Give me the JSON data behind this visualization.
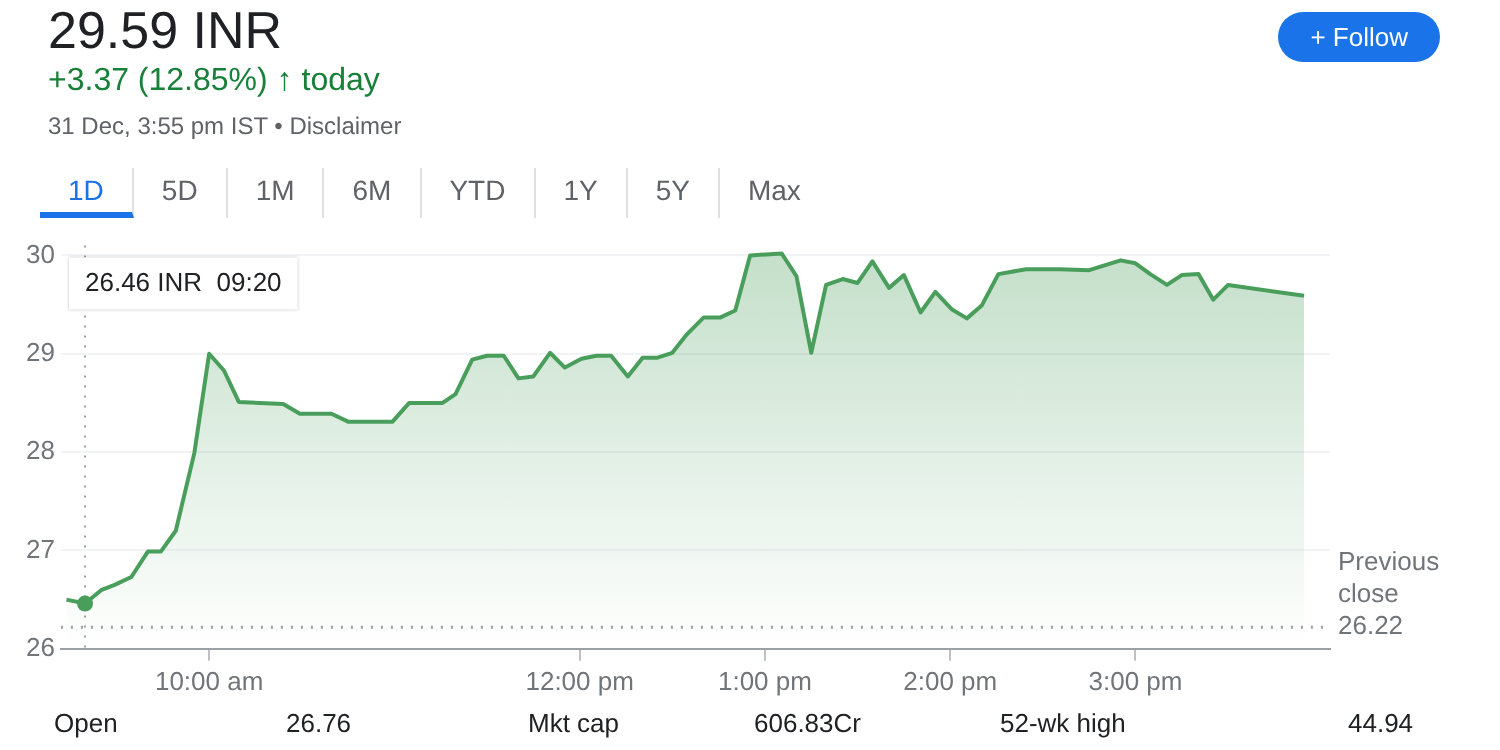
{
  "chart_data": {
    "type": "area",
    "title": "29.59 INR",
    "subtitle": "+3.37 (12.85%) ↑ today",
    "annotations": [
      "31 Dec, 3:55 pm IST • Disclaimer",
      "+ Follow",
      "1D",
      "5D",
      "1M",
      "6M",
      "YTD",
      "1Y",
      "5Y",
      "Max",
      "Open",
      "26.76",
      "Mkt cap",
      "606.83Cr",
      "52-wk high",
      "44.94"
    ],
    "series": [
      {
        "color": "#4a9e5c",
        "x": [
          9.23,
          9.33,
          9.42,
          9.49,
          9.58,
          9.67,
          9.74,
          9.82,
          9.92,
          10.0,
          10.08,
          10.16,
          10.4,
          10.49,
          10.66,
          10.75,
          10.99,
          11.08,
          11.26,
          11.33,
          11.42,
          11.5,
          11.59,
          11.67,
          11.75,
          11.84,
          11.92,
          12.01,
          12.09,
          12.17,
          12.26,
          12.34,
          12.42,
          12.5,
          12.58,
          12.67,
          12.76,
          12.84,
          12.92,
          13.09,
          13.17,
          13.25,
          13.33,
          13.42,
          13.5,
          13.58,
          13.67,
          13.75,
          13.84,
          13.92,
          14.01,
          14.09,
          14.17,
          14.26,
          14.41,
          14.59,
          14.75,
          14.92,
          15.0,
          15.08,
          15.17,
          15.25,
          15.34,
          15.42,
          15.5,
          15.91
        ],
        "values": [
          26.5,
          26.46,
          26.6,
          26.65,
          26.73,
          26.99,
          26.99,
          27.2,
          27.99,
          29.0,
          28.83,
          28.51,
          28.49,
          28.39,
          28.39,
          28.31,
          28.31,
          28.5,
          28.5,
          28.59,
          28.94,
          28.98,
          28.98,
          28.75,
          28.77,
          29.01,
          28.86,
          28.95,
          28.98,
          28.98,
          28.77,
          28.96,
          28.96,
          29.01,
          29.2,
          29.37,
          29.37,
          29.44,
          30.0,
          30.02,
          29.79,
          29.01,
          29.7,
          29.76,
          29.72,
          29.94,
          29.67,
          29.8,
          29.42,
          29.63,
          29.45,
          29.36,
          29.49,
          29.81,
          29.86,
          29.86,
          29.85,
          29.95,
          29.92,
          29.81,
          29.7,
          29.8,
          29.81,
          29.55,
          29.7,
          29.59
        ]
      }
    ],
    "xlim": [
      9.2,
      16.05
    ],
    "ylim": [
      26,
      30.1
    ],
    "xticks": [
      {
        "value": 10,
        "label": "10:00 am"
      },
      {
        "value": 12,
        "label": "12:00 pm"
      },
      {
        "value": 13,
        "label": "1:00 pm"
      },
      {
        "value": 14,
        "label": "2:00 pm"
      },
      {
        "value": 15,
        "label": "3:00 pm"
      }
    ],
    "yticks": [
      26,
      27,
      28,
      29,
      30
    ],
    "ref_lines": [
      {
        "axis": "y",
        "value": 26.22,
        "label": "Previous close 26.22",
        "line_style": "dotted",
        "color": "#9aa0a6"
      },
      {
        "axis": "x",
        "value": 9.33,
        "label": "26.46 INR  09:20",
        "line_style": "dotted",
        "color": "#9aa0a6"
      }
    ],
    "grid": "y",
    "legend": false,
    "marker": "none",
    "line_style": "solid"
  }
}
